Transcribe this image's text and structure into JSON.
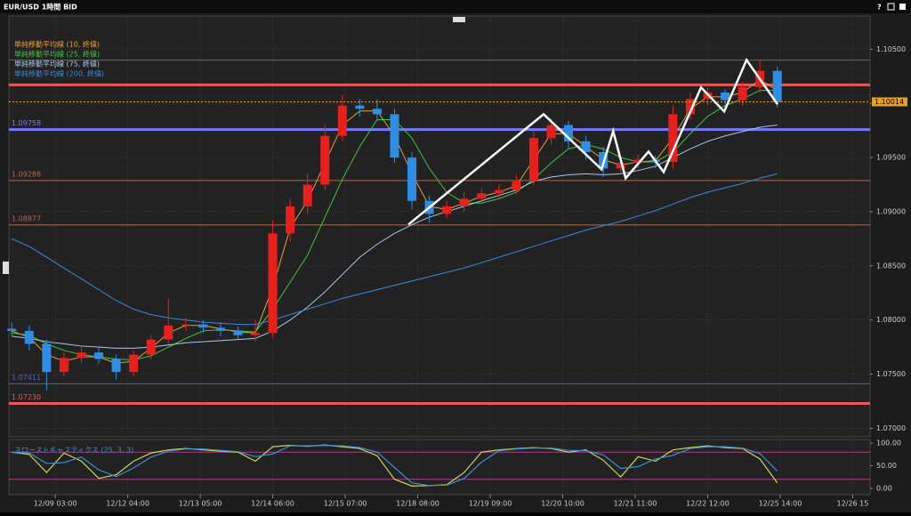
{
  "window_title": "EUR/USD 1時間 BID",
  "buttons": [
    "?"
  ],
  "chart_data": [
    {
      "type": "candlestick",
      "xlim": [
        -1,
        296
      ],
      "xticks": [
        {
          "value": 15,
          "label": "12/09 03:00"
        },
        {
          "value": 40,
          "label": "12/12 04:00"
        },
        {
          "value": 65,
          "label": "12/13 05:00"
        },
        {
          "value": 90,
          "label": "12/14 06:00"
        },
        {
          "value": 115,
          "label": "12/15 07:00"
        },
        {
          "value": 140,
          "label": "12/18 08:00"
        },
        {
          "value": 165,
          "label": "12/19 09:00"
        },
        {
          "value": 190,
          "label": "12/20 10:00"
        },
        {
          "value": 215,
          "label": "12/21 11:00"
        },
        {
          "value": 240,
          "label": "12/22 12:00"
        },
        {
          "value": 265,
          "label": "12/25 14:00"
        },
        {
          "value": 290,
          "label": "12/26 15"
        }
      ],
      "ylim": [
        1.0693,
        1.1079
      ],
      "yticks": [
        {
          "value": 1.105,
          "label": "1.10500"
        },
        {
          "value": 1.1,
          "label": "1.10000"
        },
        {
          "value": 1.095,
          "label": "1.09500"
        },
        {
          "value": 1.09,
          "label": "1.09000"
        },
        {
          "value": 1.085,
          "label": "1.08500"
        },
        {
          "value": 1.08,
          "label": "1.08000"
        },
        {
          "value": 1.075,
          "label": "1.07500"
        },
        {
          "value": 1.07,
          "label": "1.07000"
        }
      ],
      "grid": true,
      "up_color": "#e8201c",
      "down_color": "#2f8de4",
      "x": [
        0,
        6,
        12,
        18,
        24,
        30,
        36,
        42,
        48,
        54,
        60,
        66,
        72,
        78,
        84,
        90,
        96,
        102,
        108,
        114,
        120,
        126,
        132,
        138,
        144,
        150,
        156,
        162,
        168,
        174,
        180,
        186,
        192,
        198,
        204,
        210,
        216,
        222,
        228,
        234,
        240,
        246,
        252,
        258,
        264
      ],
      "candles": {
        "open": [
          1.0792,
          1.079,
          1.0778,
          1.0752,
          1.0765,
          1.077,
          1.0764,
          1.0752,
          1.0768,
          1.0782,
          1.0795,
          1.0796,
          1.0793,
          1.079,
          1.0786,
          1.0788,
          1.088,
          1.0905,
          1.0925,
          1.097,
          1.0998,
          1.0995,
          1.099,
          1.095,
          1.091,
          1.0898,
          1.0905,
          1.0912,
          1.0917,
          1.092,
          1.0928,
          1.0968,
          1.098,
          1.0965,
          1.0955,
          1.094,
          1.0945,
          1.0948,
          1.0946,
          1.099,
          1.1004,
          1.101,
          1.1003,
          1.1015,
          1.103
        ],
        "high": [
          1.0798,
          1.0795,
          1.0782,
          1.077,
          1.0775,
          1.0774,
          1.0768,
          1.0772,
          1.0786,
          1.082,
          1.0802,
          1.08,
          1.0798,
          1.0794,
          1.08,
          1.0892,
          1.0912,
          1.0935,
          1.098,
          1.1008,
          1.1004,
          1.1004,
          1.0995,
          1.0955,
          1.0915,
          1.091,
          1.0918,
          1.0922,
          1.0925,
          1.0934,
          1.0975,
          1.0986,
          1.0984,
          1.097,
          1.096,
          1.095,
          1.0953,
          1.0952,
          1.0998,
          1.101,
          1.1015,
          1.1013,
          1.102,
          1.104,
          1.1034
        ],
        "low": [
          1.0785,
          1.0772,
          1.0735,
          1.0748,
          1.076,
          1.076,
          1.0745,
          1.0748,
          1.0764,
          1.0778,
          1.079,
          1.0788,
          1.0785,
          1.0782,
          1.078,
          1.0784,
          1.0872,
          1.0898,
          1.092,
          1.0965,
          1.0988,
          1.0984,
          1.0945,
          1.0902,
          1.089,
          1.0894,
          1.09,
          1.0908,
          1.0912,
          1.0916,
          1.0924,
          1.0962,
          1.0958,
          1.0948,
          1.0932,
          1.0935,
          1.094,
          1.094,
          1.094,
          1.0985,
          1.0998,
          1.0996,
          1.0998,
          1.101,
          1.0996
        ],
        "close": [
          1.079,
          1.0778,
          1.0752,
          1.0765,
          1.077,
          1.0764,
          1.0752,
          1.0768,
          1.0782,
          1.0795,
          1.0796,
          1.0793,
          1.079,
          1.0786,
          1.0788,
          1.088,
          1.0905,
          1.0925,
          1.097,
          1.0998,
          1.0995,
          1.099,
          1.095,
          1.091,
          1.0898,
          1.0905,
          1.0912,
          1.0917,
          1.092,
          1.0928,
          1.0968,
          1.098,
          1.0965,
          1.0955,
          1.094,
          1.0945,
          1.0948,
          1.0946,
          1.099,
          1.1004,
          1.101,
          1.1003,
          1.1015,
          1.103,
          1.1001
        ]
      },
      "series": [
        {
          "name": "単純移動平均線 (10, 終値)",
          "color": "#e8a030",
          "values": [
            1.079,
            1.0784,
            1.0768,
            1.0762,
            1.0766,
            1.0766,
            1.076,
            1.0762,
            1.0774,
            1.0788,
            1.0795,
            1.0795,
            1.0792,
            1.0789,
            1.0788,
            1.083,
            1.0885,
            1.091,
            1.0945,
            1.098,
            1.0993,
            1.0993,
            1.097,
            1.0935,
            1.0905,
            1.0902,
            1.0908,
            1.0914,
            1.0918,
            1.0924,
            1.0948,
            1.0972,
            1.0972,
            1.096,
            1.0948,
            1.0943,
            1.0946,
            1.0947,
            1.0968,
            1.0995,
            1.1006,
            1.1006,
            1.101,
            1.1022,
            1.1012
          ]
        },
        {
          "name": "単純移動平均線 (25, 終値)",
          "color": "#3cc83c",
          "values": [
            1.0788,
            1.0786,
            1.0778,
            1.0772,
            1.0768,
            1.0766,
            1.0764,
            1.0763,
            1.0767,
            1.0775,
            1.0783,
            1.079,
            1.0791,
            1.079,
            1.0789,
            1.081,
            1.0835,
            1.086,
            1.0895,
            1.093,
            1.096,
            1.0985,
            1.0985,
            1.0968,
            1.094,
            1.0918,
            1.0908,
            1.0908,
            1.0912,
            1.0918,
            1.093,
            1.0945,
            1.0958,
            1.0962,
            1.0958,
            1.095,
            1.0946,
            1.0946,
            1.0955,
            1.0972,
            1.0988,
            1.0998,
            1.1004,
            1.1012,
            1.1012
          ]
        },
        {
          "name": "単純移動平均線 (75, 終値)",
          "color": "#a8c8e8",
          "values": [
            1.0785,
            1.0783,
            1.078,
            1.0778,
            1.0776,
            1.0775,
            1.0774,
            1.0774,
            1.0775,
            1.0777,
            1.0779,
            1.078,
            1.0781,
            1.0782,
            1.0783,
            1.079,
            1.08,
            1.0812,
            1.0826,
            1.0842,
            1.0858,
            1.087,
            1.088,
            1.0888,
            1.0895,
            1.09,
            1.0905,
            1.091,
            1.0915,
            1.092,
            1.0928,
            1.0932,
            1.0934,
            1.0935,
            1.0934,
            1.0935,
            1.0938,
            1.0942,
            1.095,
            1.0958,
            1.0965,
            1.097,
            1.0974,
            1.0978,
            1.098
          ]
        },
        {
          "name": "単純移動平均線 (200, 終値)",
          "color": "#3a88d8",
          "values": [
            1.0875,
            1.0868,
            1.0858,
            1.0848,
            1.0838,
            1.0828,
            1.0818,
            1.081,
            1.0805,
            1.0802,
            1.08,
            1.0798,
            1.0797,
            1.0796,
            1.0796,
            1.08,
            1.0805,
            1.081,
            1.0815,
            1.082,
            1.0824,
            1.0828,
            1.0832,
            1.0836,
            1.084,
            1.0844,
            1.0848,
            1.0853,
            1.0858,
            1.0863,
            1.0868,
            1.0873,
            1.0878,
            1.0883,
            1.0887,
            1.0891,
            1.0896,
            1.0901,
            1.0907,
            1.0913,
            1.0918,
            1.0922,
            1.0926,
            1.0931,
            1.0935
          ]
        }
      ],
      "levels": [
        {
          "value": 1.104,
          "color": "#5a5ab8",
          "width": 1
        },
        {
          "value": 1.10171,
          "color": "#e85858",
          "width": 3
        },
        {
          "value": 1.09758,
          "color": "#7878ff",
          "width": 3,
          "label": "1.09758"
        },
        {
          "value": 1.09288,
          "color": "#b06a50",
          "width": 1,
          "label": "1.09288"
        },
        {
          "value": 1.08877,
          "color": "#b06a50",
          "width": 1,
          "label": "1.08877"
        },
        {
          "value": 1.07411,
          "color": "#5a5ab8",
          "width": 1,
          "label": "1.07411"
        },
        {
          "value": 1.0723,
          "color": "#e85858",
          "width": 3,
          "label": "1.07230"
        }
      ],
      "last_price": {
        "value": 1.10014,
        "color": "#e8a020"
      },
      "drawings": [
        {
          "color": "#ffffff",
          "x": [
            136.8,
            183.4,
            203.4,
            207.4,
            211.7,
            219.6,
            224.8,
            237.7,
            245.7,
            253.4,
            264.1
          ],
          "y": [
            1.08882,
            1.099,
            1.09391,
            1.09744,
            1.09309,
            1.09555,
            1.09366,
            1.10147,
            1.09925,
            1.10401,
            1.09991
          ]
        }
      ]
    },
    {
      "type": "line",
      "title": "スローストキャスティクス (25, 3, 3)",
      "xlim": [
        -1,
        296
      ],
      "ylim": [
        -14,
        108
      ],
      "yticks": [
        {
          "value": 100,
          "label": "100.00"
        },
        {
          "value": 50,
          "label": "50.00"
        },
        {
          "value": 0,
          "label": "0.00"
        }
      ],
      "levels": [
        20,
        80
      ],
      "level_color": "#b03a8a",
      "x": [
        0,
        6,
        12,
        18,
        24,
        30,
        36,
        42,
        48,
        54,
        60,
        66,
        72,
        78,
        84,
        90,
        96,
        102,
        108,
        114,
        120,
        126,
        132,
        138,
        144,
        150,
        156,
        162,
        168,
        174,
        180,
        186,
        192,
        198,
        204,
        210,
        216,
        222,
        228,
        234,
        240,
        246,
        252,
        258,
        264
      ],
      "series": [
        {
          "color": "#c8d84a",
          "values": [
            80,
            75,
            35,
            78,
            60,
            22,
            30,
            60,
            78,
            85,
            88,
            85,
            82,
            80,
            60,
            92,
            95,
            93,
            96,
            92,
            88,
            72,
            20,
            5,
            6,
            8,
            35,
            80,
            85,
            88,
            90,
            88,
            80,
            85,
            62,
            25,
            70,
            60,
            85,
            90,
            94,
            90,
            88,
            65,
            12
          ]
        },
        {
          "color": "#3a90d0",
          "values": [
            80,
            78,
            55,
            57,
            69,
            41,
            26,
            45,
            69,
            82,
            87,
            87,
            84,
            81,
            70,
            76,
            94,
            94,
            95,
            94,
            90,
            80,
            46,
            12,
            6,
            7,
            22,
            58,
            83,
            87,
            89,
            89,
            84,
            83,
            74,
            44,
            48,
            65,
            73,
            88,
            92,
            92,
            89,
            77,
            38
          ]
        }
      ]
    }
  ]
}
